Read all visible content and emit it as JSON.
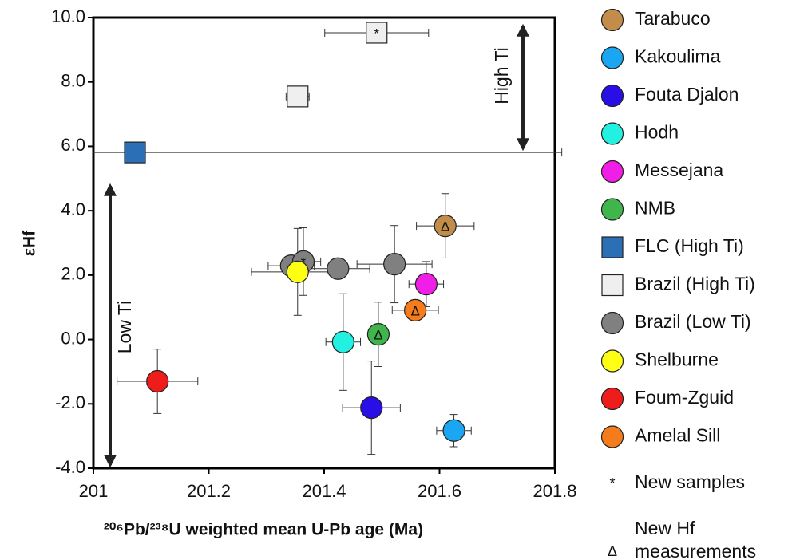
{
  "chart_data": {
    "type": "scatter",
    "xlabel": "²⁰⁶Pb/²³⁸U weighted mean U-Pb age (Ma)",
    "ylabel": "εHf",
    "xlim": [
      201,
      201.8
    ],
    "ylim": [
      -4,
      10
    ],
    "xticks": [
      201,
      201.2,
      201.4,
      201.6,
      201.8
    ],
    "yticks": [
      {
        "value": -4,
        "label": "-4.0"
      },
      {
        "value": -2,
        "label": "-2.0"
      },
      {
        "value": 0,
        "label": "0.0"
      },
      {
        "value": 2,
        "label": "2.0"
      },
      {
        "value": 4,
        "label": "4.0"
      },
      {
        "value": 6,
        "label": "6.0"
      },
      {
        "value": 8,
        "label": "8.0"
      },
      {
        "value": 10,
        "label": "10.0"
      }
    ],
    "annotations": [
      "High Ti",
      "Low Ti"
    ],
    "series": [
      {
        "name": "Tarabuco",
        "color": "#c28c4a",
        "marker": "circle",
        "x": [
          201.61
        ],
        "values": [
          3.53
        ],
        "xerr": [
          0.05
        ],
        "yerr": [
          1.0
        ],
        "point_symbols": [
          "Δ"
        ]
      },
      {
        "name": "Kakoulima",
        "color": "#1aa6f0",
        "marker": "circle",
        "x": [
          201.625
        ],
        "values": [
          -2.83
        ],
        "xerr": [
          0.03
        ],
        "yerr": [
          0.5
        ],
        "point_symbols": [
          null
        ]
      },
      {
        "name": "Fouta Djalon",
        "color": "#2a0ee6",
        "marker": "circle",
        "x": [
          201.482
        ],
        "values": [
          -2.12
        ],
        "xerr": [
          0.05
        ],
        "yerr": [
          1.45
        ],
        "point_symbols": [
          null
        ]
      },
      {
        "name": "Hodh",
        "color": "#22f0e0",
        "marker": "circle",
        "x": [
          201.433
        ],
        "values": [
          -0.08
        ],
        "xerr": [
          0.03
        ],
        "yerr": [
          1.5
        ],
        "point_symbols": [
          null
        ]
      },
      {
        "name": "Messejana",
        "color": "#f01ee6",
        "marker": "circle",
        "x": [
          201.577
        ],
        "values": [
          1.72
        ],
        "xerr": [
          0.03
        ],
        "yerr": [
          0.7
        ],
        "point_symbols": [
          null
        ]
      },
      {
        "name": "NMB",
        "color": "#3fb54c",
        "marker": "circle",
        "x": [
          201.494
        ],
        "values": [
          0.16
        ],
        "xerr": [
          0.015
        ],
        "yerr": [
          1.0
        ],
        "point_symbols": [
          "Δ"
        ]
      },
      {
        "name": "FLC (High Ti)",
        "color": "#2b6fb6",
        "marker": "square",
        "x": [
          201.072
        ],
        "values": [
          5.81
        ],
        "xerr": [
          0.74
        ],
        "yerr": [
          null
        ],
        "point_symbols": [
          null
        ]
      },
      {
        "name": "Brazil (High Ti)",
        "color": "#efefef",
        "marker": "square",
        "x": [
          201.491,
          201.354
        ],
        "values": [
          9.53,
          7.55
        ],
        "xerr": [
          0.09,
          0.02
        ],
        "yerr": [
          null,
          null
        ],
        "point_symbols": [
          "*",
          null
        ]
      },
      {
        "name": "Brazil (Low Ti)",
        "color": "#808080",
        "marker": "circle",
        "x": [
          201.343,
          201.364,
          201.424,
          201.522
        ],
        "values": [
          2.29,
          2.42,
          2.2,
          2.34
        ],
        "xerr": [
          0.04,
          0.03,
          0.055,
          0.065
        ],
        "yerr": [
          null,
          1.05,
          null,
          1.2
        ],
        "point_symbols": [
          null,
          "*",
          null,
          null
        ]
      },
      {
        "name": "Shelburne",
        "color": "#ffff14",
        "marker": "circle",
        "x": [
          201.354
        ],
        "values": [
          2.1
        ],
        "xerr": [
          0.08
        ],
        "yerr": [
          1.35
        ],
        "point_symbols": [
          null
        ]
      },
      {
        "name": "Foum-Zguid",
        "color": "#ef1c1c",
        "marker": "circle",
        "x": [
          201.111
        ],
        "values": [
          -1.3
        ],
        "xerr": [
          0.07
        ],
        "yerr": [
          1.0
        ],
        "point_symbols": [
          null
        ]
      },
      {
        "name": "Amelal Sill",
        "color": "#f57c1c",
        "marker": "circle",
        "x": [
          201.558
        ],
        "values": [
          0.91
        ],
        "xerr": [
          0.04
        ],
        "yerr": [
          null
        ],
        "point_symbols": [
          "Δ"
        ]
      }
    ],
    "symbol_legend": [
      {
        "symbol": "*",
        "label": "New samples"
      },
      {
        "symbol": "Δ",
        "label": "New Hf measurements"
      }
    ]
  }
}
